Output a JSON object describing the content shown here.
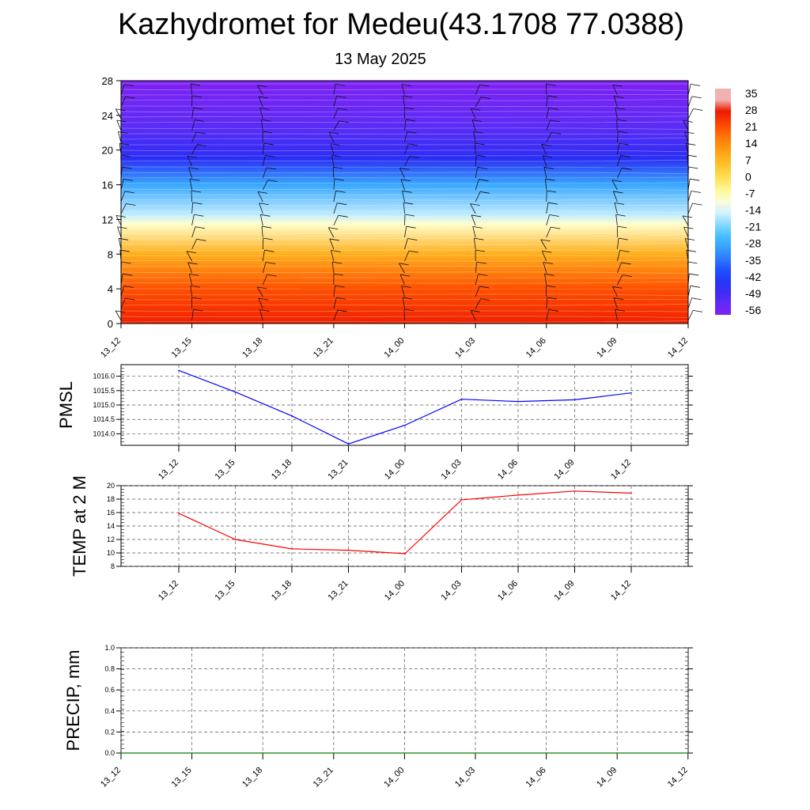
{
  "title": "Kazhydromet for Medeu(43.1708 77.0388)",
  "subtitle": "13 May 2025",
  "chart_data": [
    {
      "type": "heatmap",
      "description_axis": "vertical levels",
      "x_categories": [
        "13_12",
        "13_15",
        "13_18",
        "13_21",
        "14_00",
        "14_03",
        "14_06",
        "14_09",
        "14_12"
      ],
      "y_ticks": [
        0,
        4,
        8,
        12,
        16,
        20,
        24,
        28
      ],
      "ylim": [
        0,
        28
      ],
      "colorbar_labels": [
        "35",
        "28",
        "21",
        "14",
        "7",
        "0",
        "-7",
        "-14",
        "-21",
        "-28",
        "-35",
        "-42",
        "-49",
        "-56"
      ],
      "temperature_profile": [
        {
          "y": 0,
          "value": 30
        },
        {
          "y": 4,
          "value": 24
        },
        {
          "y": 8,
          "value": 10
        },
        {
          "y": 11.5,
          "value": -10
        },
        {
          "y": 12.5,
          "value": -18
        },
        {
          "y": 16,
          "value": -32
        },
        {
          "y": 19,
          "value": -52
        },
        {
          "y": 22.5,
          "value": -58
        },
        {
          "y": 28,
          "value": -65
        }
      ]
    },
    {
      "type": "line",
      "ylabel": "PMSL",
      "categories": [
        "13_12",
        "13_15",
        "13_18",
        "13_21",
        "14_00",
        "14_03",
        "14_06",
        "14_09",
        "14_12"
      ],
      "values": [
        1016.2,
        1015.45,
        1014.62,
        1013.65,
        1014.3,
        1015.2,
        1015.12,
        1015.18,
        1015.42
      ],
      "yticks": [
        "1014.0",
        "1014.5",
        "1015.0",
        "1015.5",
        "1016.0"
      ],
      "ylim": [
        1013.6,
        1016.4
      ],
      "color": "#0000ff",
      "grid": true
    },
    {
      "type": "line",
      "ylabel": "TEMP at 2 M",
      "categories": [
        "13_12",
        "13_15",
        "13_18",
        "13_21",
        "14_00",
        "14_03",
        "14_06",
        "14_09",
        "14_12"
      ],
      "values": [
        15.9,
        12.0,
        10.6,
        10.4,
        9.9,
        17.9,
        18.6,
        19.2,
        18.9
      ],
      "yticks": [
        "8",
        "10",
        "12",
        "14",
        "16",
        "18",
        "20"
      ],
      "ylim": [
        8,
        20
      ],
      "color": "#ff0000",
      "grid": true
    },
    {
      "type": "line",
      "ylabel": "PRECIP, mm",
      "categories": [
        "13_12",
        "13_15",
        "13_18",
        "13_21",
        "14_00",
        "14_03",
        "14_06",
        "14_09",
        "14_12"
      ],
      "values": [
        0,
        0,
        0,
        0,
        0,
        0,
        0,
        0,
        0
      ],
      "yticks": [
        "0.0",
        "0.2",
        "0.4",
        "0.6",
        "0.8",
        "1.0"
      ],
      "ylim": [
        0,
        1
      ],
      "color": "#008000",
      "grid": true
    }
  ]
}
